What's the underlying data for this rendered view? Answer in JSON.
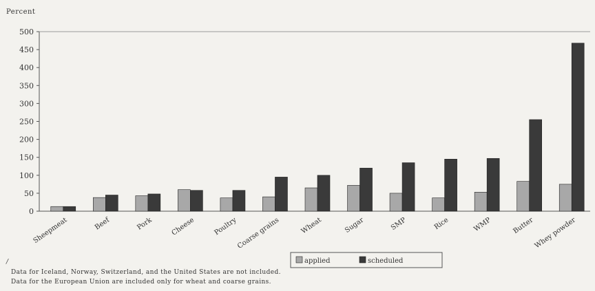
{
  "chart_data": {
    "type": "bar",
    "title": "",
    "ylabel": "Percent",
    "xlabel": "",
    "ylim": [
      0,
      500
    ],
    "yticks": [
      0,
      50,
      100,
      150,
      200,
      250,
      300,
      350,
      400,
      450,
      500
    ],
    "grid": false,
    "legend_position": "bottom",
    "categories": [
      "Sheepmeat",
      "Beef",
      "Pork",
      "Cheese",
      "Poultry",
      "Coarse grains",
      "Wheat",
      "Sugar",
      "SMP",
      "Rice",
      "WMP",
      "Butter",
      "Whey powder"
    ],
    "series": [
      {
        "name": "applied",
        "color": "#a8a8a8",
        "values": [
          13,
          38,
          43,
          60,
          37,
          40,
          65,
          72,
          50,
          37,
          53,
          83,
          75
        ]
      },
      {
        "name": "scheduled",
        "color": "#3a3a3a",
        "values": [
          13,
          45,
          48,
          58,
          58,
          95,
          100,
          120,
          135,
          145,
          147,
          255,
          468
        ]
      }
    ]
  },
  "footnote": {
    "marker": "/",
    "lines": [
      "Data for Iceland, Norway, Switzerland, and the United States are not included.",
      "Data for the European Union are included only for wheat and coarse grains."
    ]
  }
}
